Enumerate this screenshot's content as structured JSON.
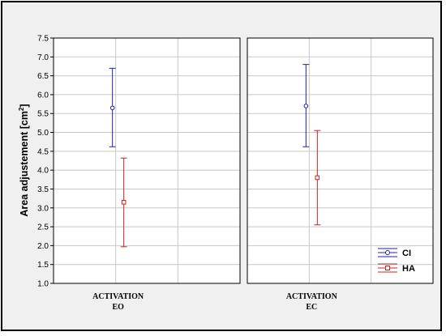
{
  "chart_data": {
    "type": "scatter",
    "ylabel": "Area adjustement [cm",
    "ylabel_sup": "2",
    "ylabel_close": "]",
    "ylim": [
      1.0,
      7.5
    ],
    "yticks": [
      "1.0",
      "1.5",
      "2.0",
      "2.5",
      "3.0",
      "3.5",
      "4.0",
      "4.5",
      "5.0",
      "5.5",
      "6.0",
      "6.5",
      "7.0",
      "7.5"
    ],
    "grid": true,
    "legend_position": "bottom-right",
    "panels": [
      {
        "factor": "ACTIVATION",
        "level": "EO"
      },
      {
        "factor": "ACTIVATION",
        "level": "EC"
      }
    ],
    "series": [
      {
        "name": "CI",
        "color": "#1f1fa8",
        "marker": "circle",
        "values": [
          {
            "mean": 5.65,
            "lower": 4.62,
            "upper": 6.7
          },
          {
            "mean": 5.7,
            "lower": 4.62,
            "upper": 6.8
          }
        ]
      },
      {
        "name": "HA",
        "color": "#cc2020",
        "marker": "square",
        "values": [
          {
            "mean": 3.15,
            "lower": 1.97,
            "upper": 4.32
          },
          {
            "mean": 3.8,
            "lower": 2.55,
            "upper": 5.05
          }
        ]
      }
    ]
  }
}
